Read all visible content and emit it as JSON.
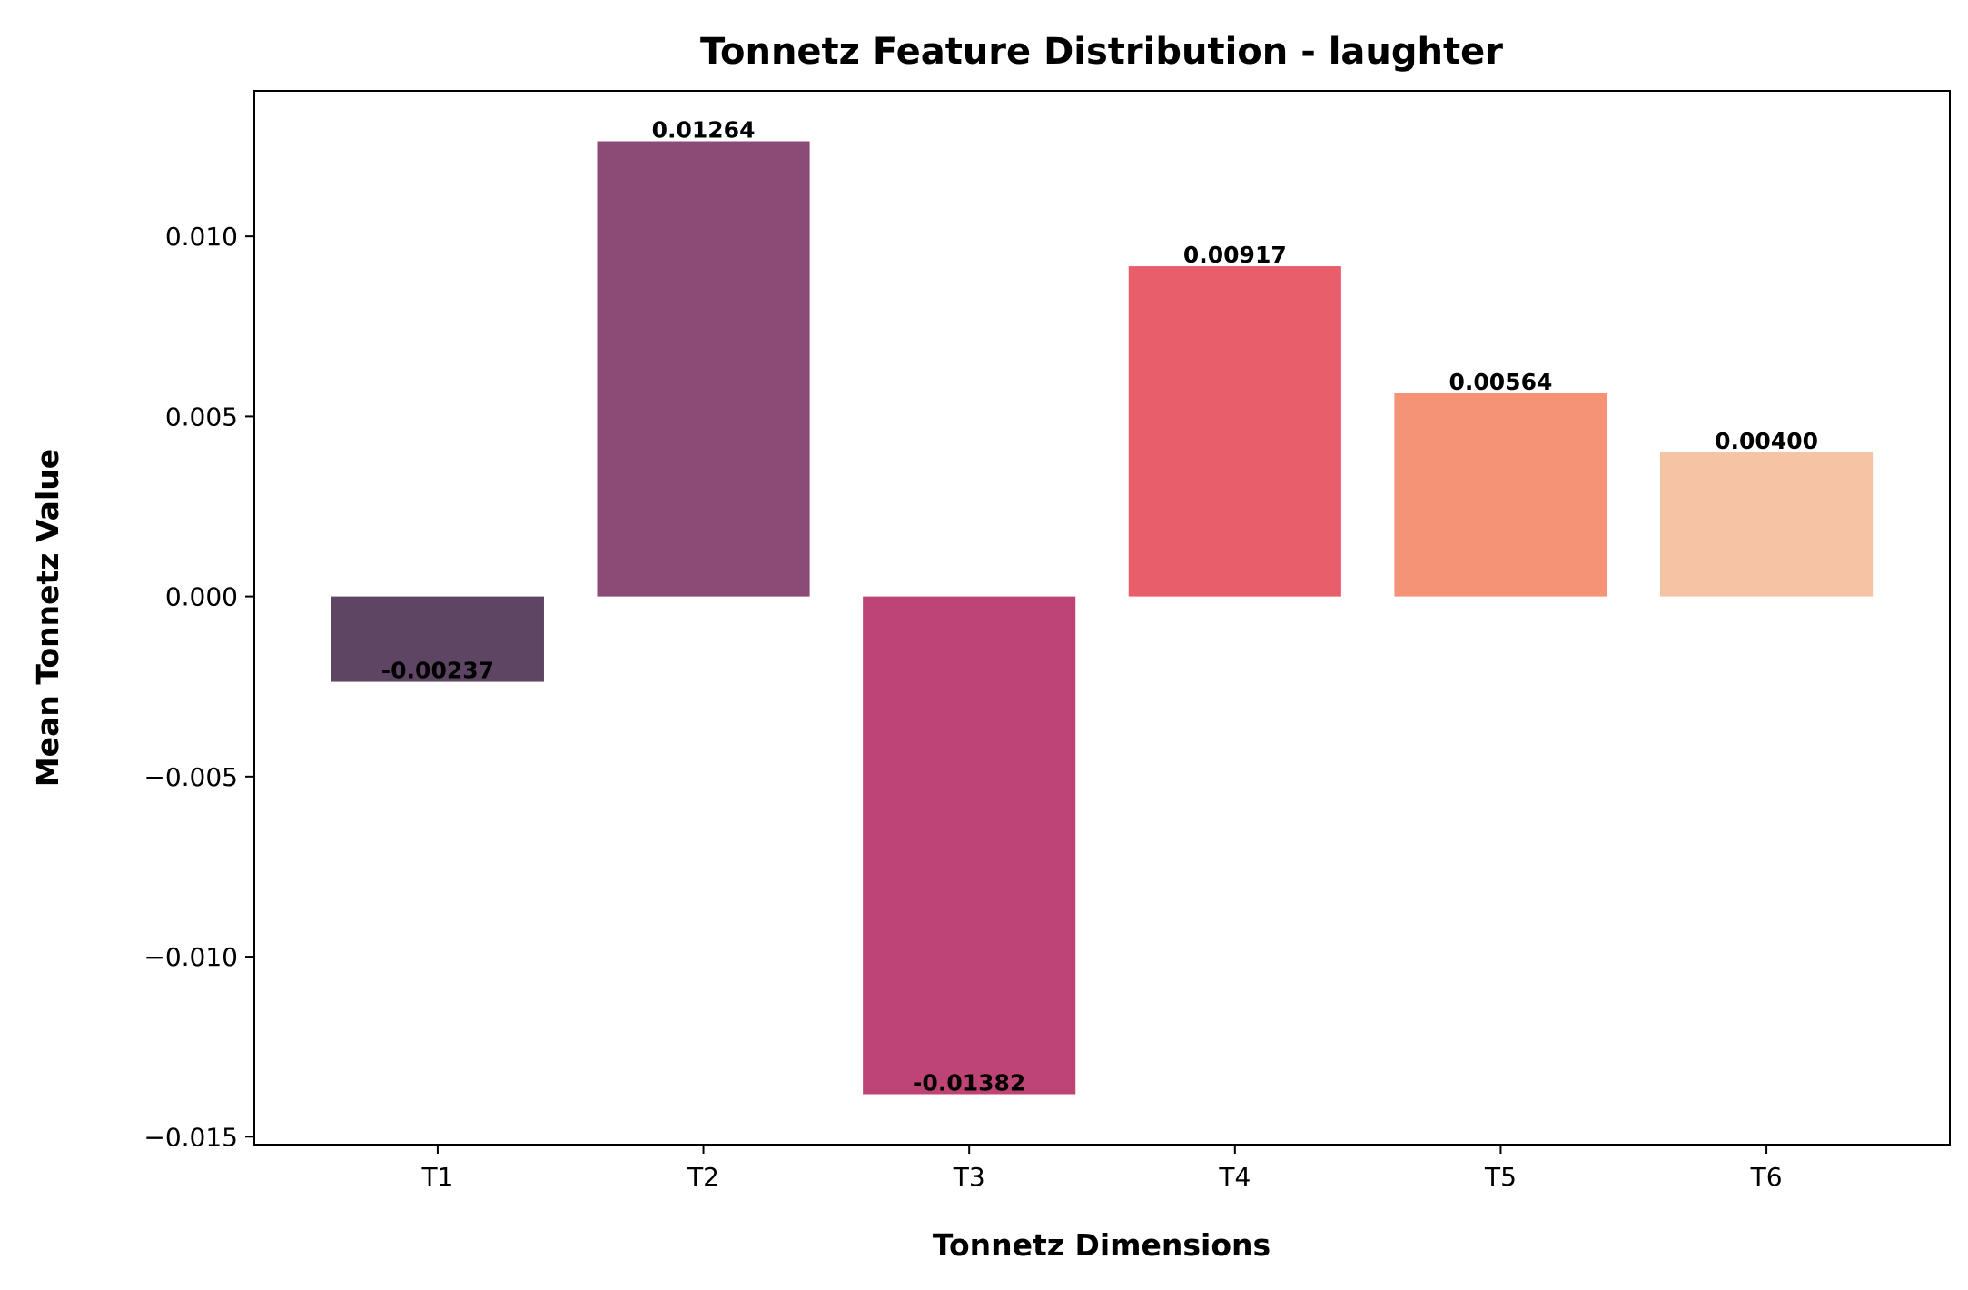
{
  "chart_data": {
    "type": "bar",
    "title": "Tonnetz Feature Distribution - laughter",
    "xlabel": "Tonnetz Dimensions",
    "ylabel": "Mean Tonnetz Value",
    "categories": [
      "T1",
      "T2",
      "T3",
      "T4",
      "T5",
      "T6"
    ],
    "values": [
      -0.00237,
      0.01264,
      -0.01382,
      0.00917,
      0.00564,
      0.004
    ],
    "value_labels": [
      "-0.00237",
      "0.01264",
      "-0.01382",
      "0.00917",
      "0.00564",
      "0.00400"
    ],
    "colors": [
      "#5e4563",
      "#8b4b76",
      "#bd4475",
      "#e85e6a",
      "#f59377",
      "#f6c3a4"
    ],
    "ylim": [
      -0.01522,
      0.01404
    ],
    "yticks": [
      -0.015,
      -0.01,
      -0.005,
      0.0,
      0.005,
      0.01
    ],
    "ytick_labels": [
      "−0.015",
      "−0.010",
      "−0.005",
      "0.000",
      "0.005",
      "0.010"
    ],
    "grid": false,
    "legend": "none"
  }
}
